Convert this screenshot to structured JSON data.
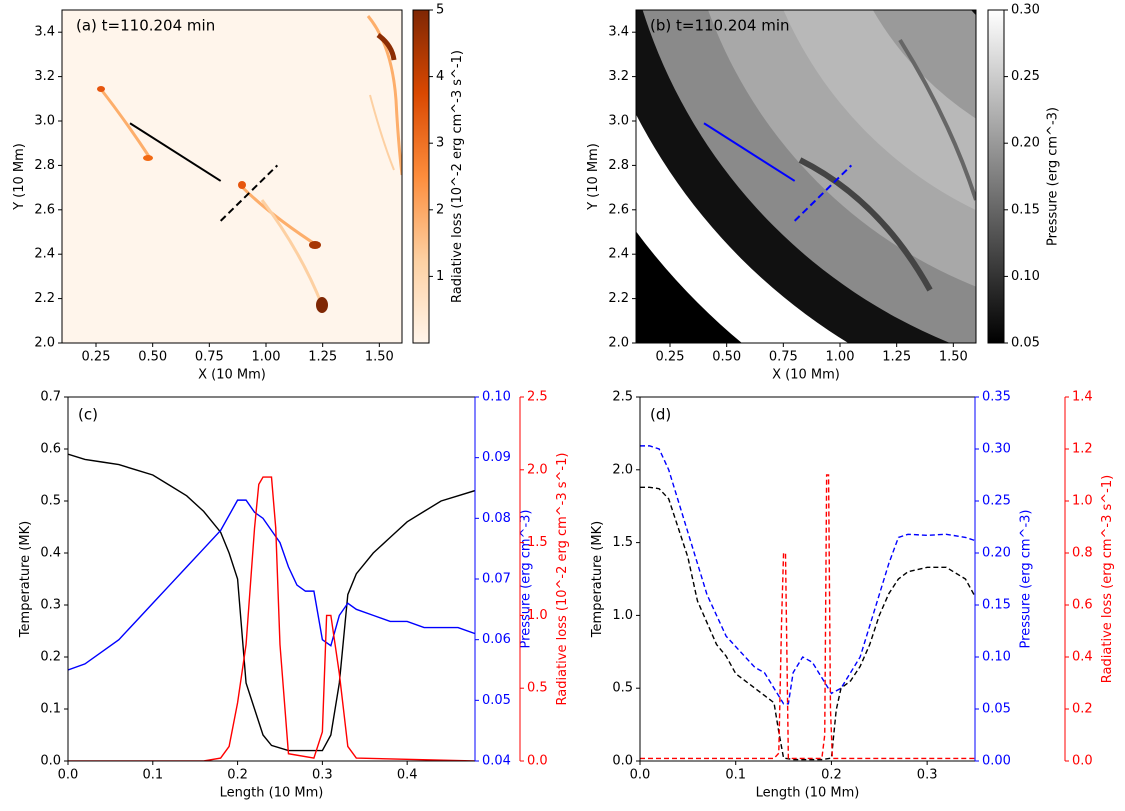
{
  "chart_data": [
    {
      "type": "heatmap",
      "title": "(a) t=110.204 min",
      "xlabel": "X (10 Mm)",
      "ylabel": "Y (10 Mm)",
      "xlim": [
        0.1,
        1.6
      ],
      "ylim": [
        2.0,
        3.5
      ],
      "xticks": [
        0.25,
        {
          "value": 0.5,
          "label": "0.50"
        },
        0.75,
        {
          "value": 1.0,
          "label": "1.00"
        },
        1.25,
        {
          "value": 1.5,
          "label": "1.50"
        }
      ],
      "yticks": [
        {
          "value": 2.0,
          "label": "2.0"
        },
        2.2,
        2.4,
        2.6,
        2.8,
        {
          "value": 3.0,
          "label": "3.0"
        },
        3.2,
        3.4
      ],
      "colorbar": {
        "label": "Radiative loss (10^-2 erg cm^-3 s^-1)",
        "lim": [
          0,
          5
        ],
        "ticks": [
          1,
          2,
          3,
          4,
          5
        ],
        "colormap": [
          "#fff5eb",
          "#fdd0a2",
          "#fd8d3c",
          "#d94801",
          "#7f2704"
        ]
      },
      "lines": [
        {
          "x": [
            0.4,
            0.8
          ],
          "y": [
            2.99,
            2.73
          ],
          "color": "#000000",
          "dashed": false
        },
        {
          "x": [
            0.8,
            1.05
          ],
          "y": [
            2.55,
            2.8
          ],
          "color": "#000000",
          "dashed": true
        }
      ]
    },
    {
      "type": "heatmap",
      "title": "(b) t=110.204 min",
      "xlabel": "X (10 Mm)",
      "ylabel": "Y (10 Mm)",
      "xlim": [
        0.1,
        1.6
      ],
      "ylim": [
        2.0,
        3.5
      ],
      "xticks": [
        0.25,
        {
          "value": 0.5,
          "label": "0.50"
        },
        0.75,
        {
          "value": 1.0,
          "label": "1.00"
        },
        1.25,
        {
          "value": 1.5,
          "label": "1.50"
        }
      ],
      "yticks": [
        {
          "value": 2.0,
          "label": "2.0"
        },
        2.2,
        2.4,
        2.6,
        2.8,
        {
          "value": 3.0,
          "label": "3.0"
        },
        3.2,
        3.4
      ],
      "colorbar": {
        "label": "Pressure (erg cm^-3)",
        "lim": [
          0.05,
          0.3
        ],
        "ticks": [
          0.05,
          {
            "value": 0.1,
            "label": "0.10"
          },
          0.15,
          {
            "value": 0.2,
            "label": "0.20"
          },
          0.25,
          {
            "value": 0.3,
            "label": "0.30"
          }
        ],
        "colormap": [
          "#000000",
          "#ffffff"
        ]
      },
      "lines": [
        {
          "x": [
            0.4,
            0.8
          ],
          "y": [
            2.99,
            2.73
          ],
          "color": "#0000ff",
          "dashed": false
        },
        {
          "x": [
            0.8,
            1.05
          ],
          "y": [
            2.55,
            2.8
          ],
          "color": "#0000ff",
          "dashed": true
        }
      ]
    },
    {
      "type": "line",
      "title": "(c)",
      "xlabel": "Length (10 Mm)",
      "dashed": false,
      "xlim": [
        0,
        0.48
      ],
      "xticks": [
        {
          "value": 0,
          "label": "0.0"
        },
        0.1,
        0.2,
        0.3,
        0.4
      ],
      "ylabel": "Temperature (MK)",
      "ylim": [
        0,
        0.7
      ],
      "yticks": [
        {
          "value": 0,
          "label": "0.0"
        },
        0.1,
        0.2,
        0.3,
        0.4,
        0.5,
        0.6,
        0.7
      ],
      "ycolor": "#000000",
      "y2label": "Pressure (erg cm^-3)",
      "y2lim": [
        0.04,
        0.1
      ],
      "y2ticks": [
        0.04,
        0.05,
        0.06,
        0.07,
        0.08,
        0.09,
        {
          "value": 0.1,
          "label": "0.10"
        }
      ],
      "y2color": "#0000ff",
      "y3label": "Radiative loss (10^-2 erg cm^-3 s^-1)",
      "y3lim": [
        0,
        2.5
      ],
      "y3ticks": [
        {
          "value": 0,
          "label": "0.0"
        },
        0.5,
        {
          "value": 1,
          "label": "1.0"
        },
        1.5,
        {
          "value": 2,
          "label": "2.0"
        },
        2.5
      ],
      "y3color": "#ff0000",
      "series": [
        {
          "axis": "y",
          "color": "#000000",
          "x": [
            0,
            0.02,
            0.04,
            0.06,
            0.08,
            0.1,
            0.12,
            0.14,
            0.16,
            0.18,
            0.19,
            0.2,
            0.21,
            0.22,
            0.23,
            0.24,
            0.26,
            0.28,
            0.3,
            0.31,
            0.32,
            0.33,
            0.34,
            0.36,
            0.38,
            0.4,
            0.42,
            0.44,
            0.46,
            0.48
          ],
          "values": [
            0.59,
            0.58,
            0.575,
            0.57,
            0.56,
            0.55,
            0.53,
            0.51,
            0.48,
            0.44,
            0.4,
            0.35,
            0.15,
            0.1,
            0.05,
            0.03,
            0.02,
            0.02,
            0.02,
            0.05,
            0.15,
            0.32,
            0.36,
            0.4,
            0.43,
            0.46,
            0.48,
            0.5,
            0.51,
            0.52
          ]
        },
        {
          "axis": "y2",
          "color": "#0000ff",
          "x": [
            0,
            0.02,
            0.04,
            0.06,
            0.08,
            0.1,
            0.12,
            0.14,
            0.16,
            0.18,
            0.2,
            0.21,
            0.22,
            0.23,
            0.24,
            0.25,
            0.26,
            0.27,
            0.28,
            0.29,
            0.3,
            0.31,
            0.32,
            0.33,
            0.34,
            0.36,
            0.38,
            0.4,
            0.42,
            0.44,
            0.46,
            0.48
          ],
          "values": [
            0.055,
            0.056,
            0.058,
            0.06,
            0.063,
            0.066,
            0.069,
            0.072,
            0.075,
            0.078,
            0.083,
            0.083,
            0.081,
            0.08,
            0.078,
            0.076,
            0.072,
            0.069,
            0.068,
            0.068,
            0.06,
            0.059,
            0.064,
            0.066,
            0.065,
            0.064,
            0.063,
            0.063,
            0.062,
            0.062,
            0.062,
            0.061
          ]
        },
        {
          "axis": "y3",
          "color": "#ff0000",
          "x": [
            0,
            0.16,
            0.18,
            0.19,
            0.2,
            0.21,
            0.22,
            0.225,
            0.23,
            0.24,
            0.245,
            0.25,
            0.26,
            0.29,
            0.3,
            0.305,
            0.31,
            0.32,
            0.33,
            0.34,
            0.48
          ],
          "values": [
            0,
            0,
            0.02,
            0.1,
            0.4,
            0.8,
            1.6,
            1.9,
            1.95,
            1.95,
            1.6,
            0.8,
            0.05,
            0.02,
            0.2,
            1,
            1,
            0.6,
            0.1,
            0.02,
            0
          ]
        }
      ]
    },
    {
      "type": "line",
      "title": "(d)",
      "xlabel": "Length (10 Mm)",
      "dashed": true,
      "xlim": [
        0,
        0.35
      ],
      "xticks": [
        {
          "value": 0,
          "label": "0.0"
        },
        0.1,
        0.2,
        0.3
      ],
      "ylabel": "Temperature (MK)",
      "ylim": [
        0,
        2.5
      ],
      "yticks": [
        {
          "value": 0,
          "label": "0.0"
        },
        0.5,
        {
          "value": 1,
          "label": "1.0"
        },
        1.5,
        {
          "value": 2,
          "label": "2.0"
        },
        2.5
      ],
      "ycolor": "#000000",
      "y2label": "Pressure (erg cm^-3)",
      "y2lim": [
        0,
        0.35
      ],
      "y2ticks": [
        {
          "value": 0,
          "label": "0.00"
        },
        0.05,
        {
          "value": 0.1,
          "label": "0.10"
        },
        0.15,
        {
          "value": 0.2,
          "label": "0.20"
        },
        0.25,
        {
          "value": 0.3,
          "label": "0.30"
        },
        0.35
      ],
      "y2color": "#0000ff",
      "y3label": "Radiative loss (erg cm^-3 s^-1)",
      "y3lim": [
        0,
        1.4
      ],
      "y3ticks": [
        {
          "value": 0,
          "label": "0.0"
        },
        0.2,
        0.4,
        0.6,
        0.8,
        {
          "value": 1,
          "label": "1.0"
        },
        1.2,
        1.4
      ],
      "y3color": "#ff0000",
      "series": [
        {
          "axis": "y",
          "color": "#000000",
          "x": [
            0,
            0.01,
            0.02,
            0.03,
            0.04,
            0.05,
            0.06,
            0.07,
            0.08,
            0.09,
            0.1,
            0.11,
            0.12,
            0.13,
            0.14,
            0.145,
            0.15,
            0.16,
            0.19,
            0.2,
            0.205,
            0.21,
            0.22,
            0.23,
            0.24,
            0.25,
            0.26,
            0.27,
            0.28,
            0.3,
            0.32,
            0.34,
            0.35
          ],
          "values": [
            1.88,
            1.88,
            1.87,
            1.8,
            1.6,
            1.4,
            1.1,
            0.95,
            0.8,
            0.72,
            0.6,
            0.55,
            0.5,
            0.45,
            0.4,
            0.2,
            0.02,
            0.01,
            0.01,
            0.02,
            0.35,
            0.5,
            0.55,
            0.65,
            0.8,
            1,
            1.15,
            1.25,
            1.3,
            1.33,
            1.33,
            1.25,
            1.13
          ]
        },
        {
          "axis": "y2",
          "color": "#0000ff",
          "x": [
            0,
            0.01,
            0.02,
            0.03,
            0.04,
            0.05,
            0.06,
            0.07,
            0.08,
            0.09,
            0.1,
            0.11,
            0.12,
            0.13,
            0.14,
            0.15,
            0.155,
            0.16,
            0.17,
            0.18,
            0.19,
            0.2,
            0.21,
            0.22,
            0.23,
            0.24,
            0.25,
            0.26,
            0.27,
            0.28,
            0.3,
            0.32,
            0.34,
            0.35
          ],
          "values": [
            0.303,
            0.303,
            0.3,
            0.28,
            0.25,
            0.22,
            0.19,
            0.16,
            0.14,
            0.12,
            0.11,
            0.1,
            0.09,
            0.085,
            0.07,
            0.055,
            0.055,
            0.085,
            0.1,
            0.095,
            0.08,
            0.065,
            0.07,
            0.085,
            0.1,
            0.13,
            0.16,
            0.19,
            0.215,
            0.218,
            0.217,
            0.218,
            0.215,
            0.212
          ]
        },
        {
          "axis": "y3",
          "color": "#ff0000",
          "x": [
            0,
            0.14,
            0.145,
            0.148,
            0.15,
            0.152,
            0.155,
            0.158,
            0.19,
            0.193,
            0.195,
            0.197,
            0.199,
            0.201,
            0.205,
            0.21,
            0.35
          ],
          "values": [
            0.01,
            0.01,
            0.03,
            0.55,
            0.8,
            0.8,
            0.01,
            0.01,
            0.01,
            0.1,
            1.1,
            1.1,
            0.2,
            0.01,
            0.01,
            0.01,
            0.01
          ]
        }
      ]
    }
  ]
}
